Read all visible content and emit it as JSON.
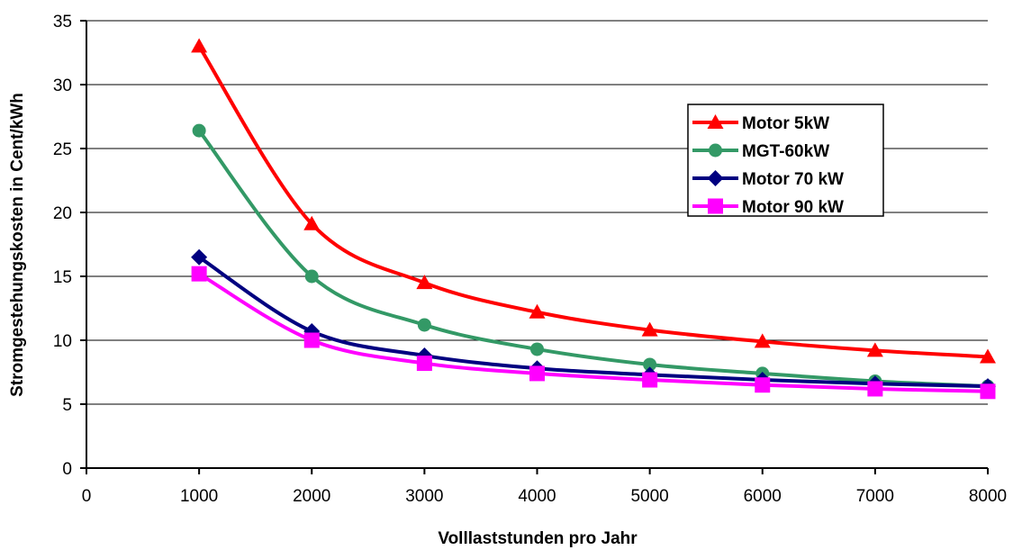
{
  "chart_data": {
    "type": "line",
    "xlabel": "Volllaststunden pro Jahr",
    "ylabel": "Stromgestehungskosten in Cent/kWh",
    "xlim": [
      0,
      8000
    ],
    "ylim": [
      0,
      35
    ],
    "xticks": [
      0,
      1000,
      2000,
      3000,
      4000,
      5000,
      6000,
      7000,
      8000
    ],
    "yticks": [
      0,
      5,
      10,
      15,
      20,
      25,
      30,
      35
    ],
    "grid": "horizontal",
    "legend_position": "right",
    "x": [
      1000,
      2000,
      3000,
      4000,
      5000,
      6000,
      7000,
      8000
    ],
    "series": [
      {
        "name": "Motor 5kW",
        "color": "#ff0000",
        "marker": "triangle",
        "values": [
          33.0,
          19.1,
          14.5,
          12.2,
          10.8,
          9.9,
          9.2,
          8.7
        ]
      },
      {
        "name": "MGT-60kW",
        "color": "#339966",
        "marker": "circle",
        "values": [
          26.4,
          15.0,
          11.2,
          9.3,
          8.1,
          7.4,
          6.8,
          6.4
        ]
      },
      {
        "name": "Motor 70 kW",
        "color": "#000080",
        "marker": "diamond",
        "values": [
          16.5,
          10.7,
          8.8,
          7.8,
          7.3,
          6.9,
          6.6,
          6.4
        ]
      },
      {
        "name": "Motor 90 kW",
        "color": "#ff00ff",
        "marker": "square",
        "values": [
          15.2,
          10.0,
          8.2,
          7.4,
          6.9,
          6.5,
          6.2,
          6.0
        ]
      }
    ]
  }
}
